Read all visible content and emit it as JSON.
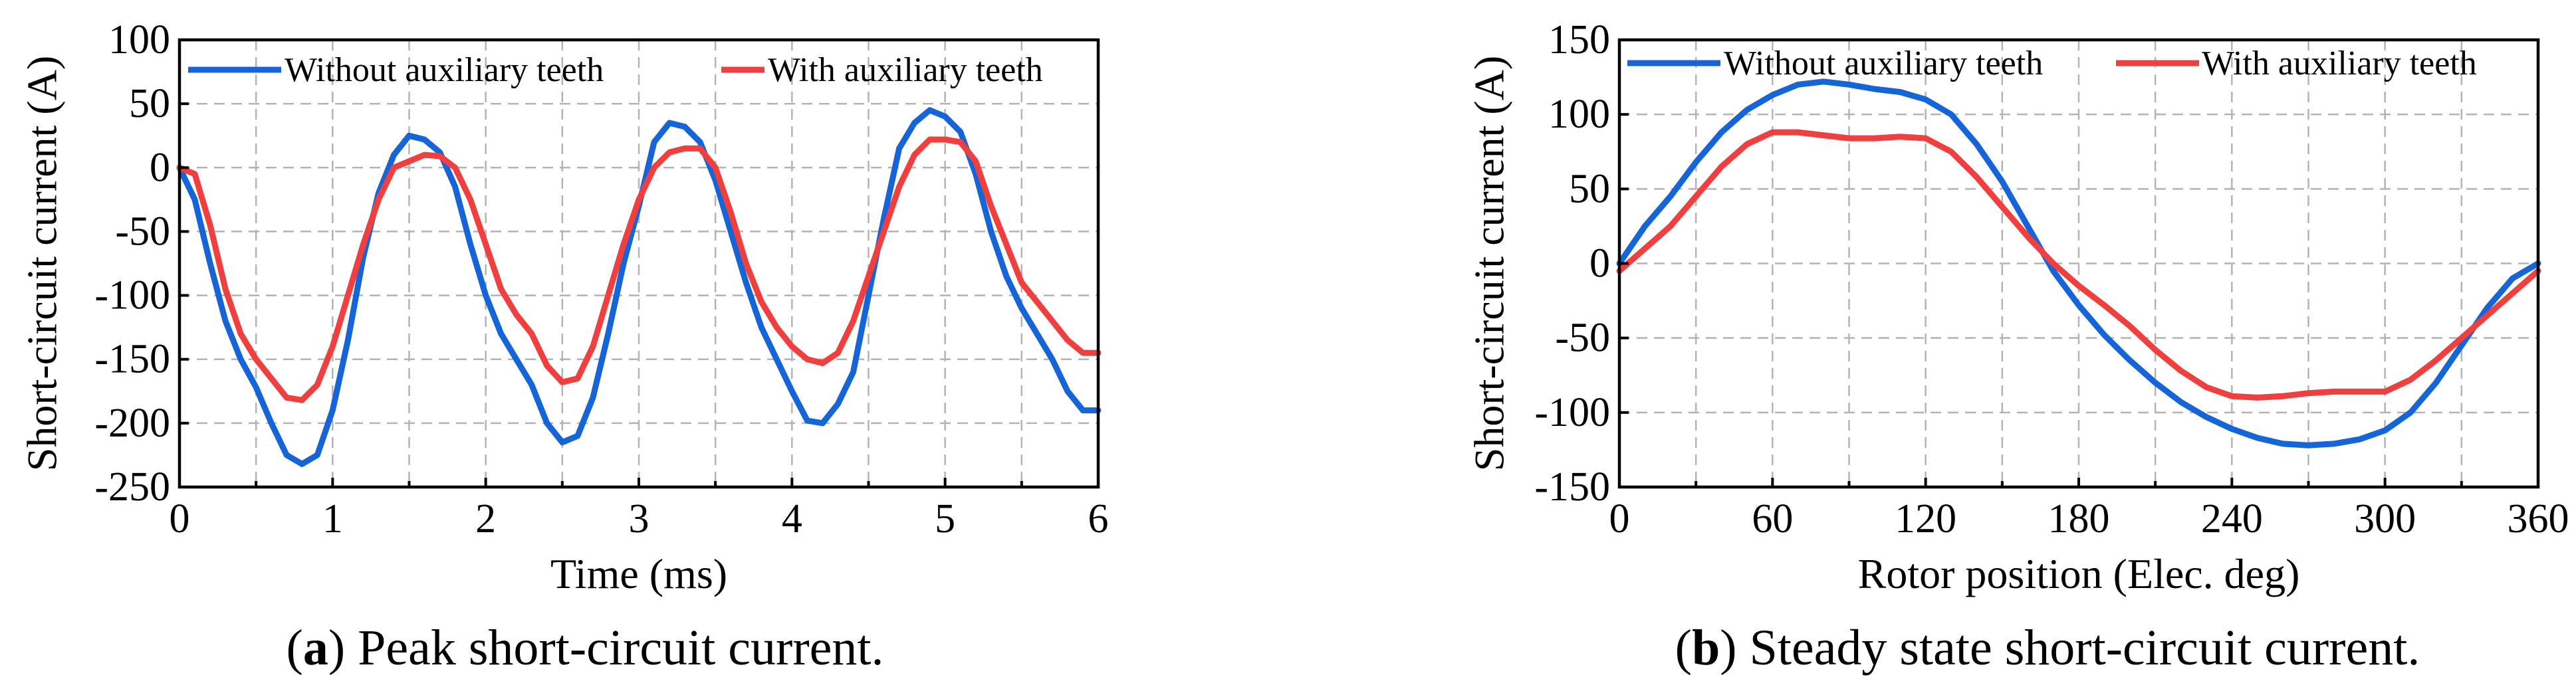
{
  "chart_data": [
    {
      "type": "line",
      "panel_label": "a",
      "caption": "Peak short-circuit current.",
      "xlabel": "Time (ms)",
      "ylabel": "Short-circuit current (A)",
      "xlim": [
        0,
        6
      ],
      "ylim": [
        -250,
        100
      ],
      "xticks": [
        0,
        1,
        2,
        3,
        4,
        5,
        6
      ],
      "yticks": [
        -250,
        -200,
        -150,
        -100,
        -50,
        0,
        50,
        100
      ],
      "grid": true,
      "legend_position": "top",
      "series": [
        {
          "name": "Without auxiliary teeth",
          "color": "#1565D8",
          "x": [
            0,
            0.1,
            0.2,
            0.3,
            0.4,
            0.5,
            0.6,
            0.7,
            0.8,
            0.9,
            1.0,
            1.1,
            1.2,
            1.3,
            1.4,
            1.5,
            1.6,
            1.7,
            1.8,
            1.9,
            2.0,
            2.1,
            2.2,
            2.3,
            2.4,
            2.5,
            2.6,
            2.7,
            2.8,
            2.9,
            3.0,
            3.1,
            3.2,
            3.3,
            3.4,
            3.5,
            3.6,
            3.7,
            3.8,
            3.9,
            4.0,
            4.1,
            4.2,
            4.3,
            4.4,
            4.5,
            4.6,
            4.7,
            4.8,
            4.9,
            5.0,
            5.1,
            5.2,
            5.3,
            5.4,
            5.5,
            5.6,
            5.7,
            5.8,
            5.9,
            6.0
          ],
          "y": [
            0,
            -25,
            -75,
            -120,
            -150,
            -172,
            -200,
            -225,
            -232,
            -225,
            -190,
            -135,
            -70,
            -20,
            10,
            25,
            22,
            12,
            -15,
            -60,
            -100,
            -130,
            -150,
            -170,
            -200,
            -215,
            -210,
            -180,
            -130,
            -75,
            -30,
            20,
            35,
            32,
            20,
            -10,
            -50,
            -90,
            -125,
            -150,
            -175,
            -198,
            -200,
            -185,
            -160,
            -100,
            -40,
            15,
            35,
            45,
            40,
            28,
            -5,
            -50,
            -85,
            -110,
            -130,
            -150,
            -175,
            -190,
            -190
          ]
        },
        {
          "name": "With auxiliary teeth",
          "color": "#F03F3F",
          "x": [
            0,
            0.1,
            0.2,
            0.3,
            0.4,
            0.5,
            0.6,
            0.7,
            0.8,
            0.9,
            1.0,
            1.1,
            1.2,
            1.3,
            1.4,
            1.5,
            1.6,
            1.7,
            1.8,
            1.9,
            2.0,
            2.1,
            2.2,
            2.3,
            2.4,
            2.5,
            2.6,
            2.7,
            2.8,
            2.9,
            3.0,
            3.1,
            3.2,
            3.3,
            3.4,
            3.5,
            3.6,
            3.7,
            3.8,
            3.9,
            4.0,
            4.1,
            4.2,
            4.3,
            4.4,
            4.5,
            4.6,
            4.7,
            4.8,
            4.9,
            5.0,
            5.1,
            5.2,
            5.3,
            5.4,
            5.5,
            5.6,
            5.7,
            5.8,
            5.9,
            6.0
          ],
          "y": [
            0,
            -5,
            -45,
            -95,
            -130,
            -150,
            -165,
            -180,
            -182,
            -170,
            -140,
            -100,
            -60,
            -25,
            0,
            5,
            10,
            9,
            0,
            -25,
            -60,
            -95,
            -115,
            -130,
            -155,
            -168,
            -165,
            -140,
            -100,
            -60,
            -25,
            0,
            12,
            15,
            15,
            0,
            -35,
            -75,
            -105,
            -125,
            -140,
            -150,
            -153,
            -145,
            -120,
            -85,
            -50,
            -15,
            10,
            22,
            22,
            20,
            5,
            -30,
            -60,
            -90,
            -105,
            -120,
            -135,
            -145,
            -145
          ]
        }
      ]
    },
    {
      "type": "line",
      "panel_label": "b",
      "caption": "Steady state short-circuit current.",
      "xlabel": "Rotor position (Elec. deg)",
      "ylabel": "Short-circuit current (A)",
      "xlim": [
        0,
        360
      ],
      "ylim": [
        -150,
        150
      ],
      "xticks": [
        0,
        60,
        120,
        180,
        240,
        300,
        360
      ],
      "yticks": [
        -150,
        -100,
        -50,
        0,
        50,
        100,
        150
      ],
      "grid": true,
      "legend_position": "top",
      "series": [
        {
          "name": "Without auxiliary teeth",
          "color": "#1565D8",
          "x": [
            0,
            10,
            20,
            30,
            40,
            50,
            60,
            70,
            80,
            90,
            100,
            110,
            120,
            130,
            140,
            150,
            160,
            170,
            180,
            190,
            200,
            210,
            220,
            230,
            240,
            250,
            260,
            270,
            280,
            290,
            300,
            310,
            320,
            330,
            340,
            350,
            360
          ],
          "y": [
            0,
            25,
            45,
            68,
            88,
            103,
            113,
            120,
            122,
            120,
            117,
            115,
            110,
            100,
            80,
            55,
            25,
            -5,
            -28,
            -48,
            -65,
            -80,
            -93,
            -103,
            -111,
            -117,
            -121,
            -122,
            -121,
            -118,
            -112,
            -100,
            -80,
            -55,
            -30,
            -10,
            0
          ]
        },
        {
          "name": "With auxiliary teeth",
          "color": "#F03F3F",
          "x": [
            0,
            10,
            20,
            30,
            40,
            50,
            60,
            70,
            80,
            90,
            100,
            110,
            120,
            130,
            140,
            150,
            160,
            170,
            180,
            190,
            200,
            210,
            220,
            230,
            240,
            250,
            260,
            270,
            280,
            290,
            300,
            310,
            320,
            330,
            340,
            350,
            360
          ],
          "y": [
            -5,
            10,
            25,
            45,
            65,
            80,
            88,
            88,
            86,
            84,
            84,
            85,
            84,
            75,
            58,
            38,
            18,
            0,
            -15,
            -28,
            -42,
            -58,
            -72,
            -83,
            -89,
            -90,
            -89,
            -87,
            -86,
            -86,
            -86,
            -78,
            -65,
            -50,
            -35,
            -20,
            -5
          ]
        }
      ]
    }
  ]
}
